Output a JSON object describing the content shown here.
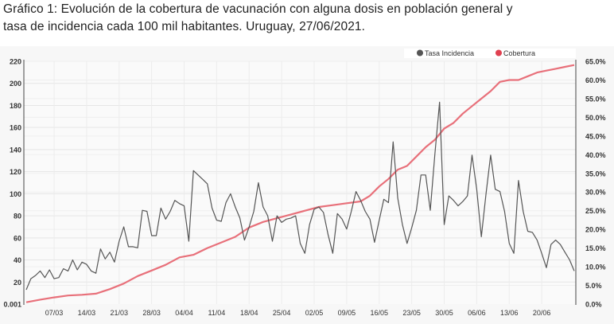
{
  "title": {
    "line1": "Gráfico 1: Evolución de la cobertura de vacunación con alguna dosis en población general y",
    "line2": "tasa de incidencia cada 100 mil habitantes. Uruguay, 27/06/2021."
  },
  "colors": {
    "incidence": "#555555",
    "coverage": "#e8707a",
    "coverage_legend": "#e04050",
    "grid": "#e6e6e6"
  },
  "chart_data": {
    "type": "line",
    "title": "Gráfico 1: Evolución de la cobertura de vacunación con alguna dosis en población general y tasa de incidencia cada 100 mil habitantes. Uruguay, 27/06/2021.",
    "legend": [
      "Tasa Incidencia",
      "Cobertura"
    ],
    "legend_position": "top-right",
    "x_ticks": [
      "07/03",
      "14/03",
      "21/03",
      "28/03",
      "04/04",
      "11/04",
      "18/04",
      "25/04",
      "02/05",
      "09/05",
      "16/05",
      "23/05",
      "30/05",
      "06/06",
      "13/06",
      "20/06"
    ],
    "y_left_ticks": [
      "0.001",
      "20",
      "40",
      "60",
      "80",
      "100",
      "120",
      "140",
      "160",
      "180",
      "200",
      "220"
    ],
    "y_left_values": [
      0.001,
      20,
      40,
      60,
      80,
      100,
      120,
      140,
      160,
      180,
      200,
      220
    ],
    "y_right_ticks": [
      "0.0%",
      "5.0%",
      "10.0%",
      "15.0%",
      "20.0%",
      "25.0%",
      "30.0%",
      "35.0%",
      "40.0%",
      "45.0%",
      "50.0%",
      "55.0%",
      "60.0%",
      "65.0%"
    ],
    "y_right_values": [
      0,
      5,
      10,
      15,
      20,
      25,
      30,
      35,
      40,
      45,
      50,
      55,
      60,
      65
    ],
    "ylim_left": [
      0,
      220
    ],
    "ylim_right": [
      0,
      65
    ],
    "x_start_day": 0,
    "x_end_day": 118,
    "x_tick_days": [
      6,
      13,
      20,
      27,
      34,
      41,
      48,
      55,
      62,
      69,
      76,
      83,
      90,
      97,
      104,
      111
    ],
    "grid": true,
    "series": [
      {
        "name": "Tasa Incidencia",
        "axis": "left",
        "days": [
          0,
          1,
          2,
          3,
          4,
          5,
          6,
          7,
          8,
          9,
          10,
          11,
          12,
          13,
          14,
          15,
          16,
          17,
          18,
          19,
          20,
          21,
          22,
          23,
          24,
          25,
          26,
          27,
          28,
          29,
          30,
          31,
          32,
          33,
          34,
          35,
          36,
          37,
          38,
          39,
          40,
          41,
          42,
          43,
          44,
          45,
          46,
          47,
          48,
          49,
          50,
          51,
          52,
          53,
          54,
          55,
          56,
          57,
          58,
          59,
          60,
          61,
          62,
          63,
          64,
          65,
          66,
          67,
          68,
          69,
          70,
          71,
          72,
          73,
          74,
          75,
          76,
          77,
          78,
          79,
          80,
          81,
          82,
          83,
          84,
          85,
          86,
          87,
          88,
          89,
          90,
          91,
          92,
          93,
          94,
          95,
          96,
          97,
          98,
          99,
          100,
          101,
          102,
          103,
          104,
          105,
          106,
          107,
          108,
          109,
          110,
          111,
          112,
          113,
          114,
          115,
          116,
          117,
          118
        ],
        "values": [
          13,
          23,
          26,
          30,
          24,
          31,
          23,
          24,
          32,
          30,
          40,
          31,
          38,
          36,
          30,
          28,
          50,
          41,
          47,
          38,
          57,
          70,
          52,
          52,
          51,
          85,
          84,
          62,
          62,
          87,
          77,
          84,
          94,
          91,
          89,
          57,
          121,
          117,
          113,
          109,
          87,
          76,
          75,
          92,
          100,
          88,
          78,
          58,
          70,
          84,
          110,
          88,
          80,
          57,
          80,
          74,
          77,
          78,
          80,
          55,
          46,
          72,
          86,
          88,
          83,
          63,
          46,
          82,
          77,
          68,
          84,
          102,
          94,
          84,
          77,
          56,
          76,
          95,
          92,
          147,
          96,
          72,
          55,
          69,
          85,
          117,
          117,
          85,
          136,
          183,
          72,
          98,
          94,
          89,
          93,
          98,
          135,
          104,
          61,
          100,
          135,
          104,
          102,
          84,
          55,
          46,
          112,
          84,
          66,
          65,
          58,
          46,
          33,
          54,
          58,
          54,
          47,
          40,
          30
        ]
      },
      {
        "name": "Cobertura",
        "axis": "right",
        "days": [
          0,
          3,
          6,
          9,
          12,
          15,
          18,
          21,
          24,
          27,
          30,
          33,
          36,
          39,
          42,
          45,
          48,
          51,
          54,
          57,
          60,
          63,
          66,
          69,
          72,
          74,
          76,
          78,
          80,
          82,
          84,
          86,
          88,
          90,
          92,
          94,
          96,
          98,
          100,
          102,
          104,
          106,
          108,
          110,
          112,
          114,
          116,
          118
        ],
        "values": [
          0.5,
          1.2,
          1.8,
          2.3,
          2.5,
          2.8,
          4.0,
          5.5,
          7.5,
          9.0,
          10.5,
          12.5,
          13.2,
          15.0,
          16.5,
          18.0,
          20.5,
          22.0,
          23.0,
          24.0,
          25.0,
          26.0,
          26.5,
          27.0,
          27.5,
          29.0,
          31.5,
          33.5,
          36.0,
          37.0,
          39.5,
          42.0,
          44.0,
          47.0,
          48.5,
          51.0,
          53.0,
          55.0,
          57.0,
          59.5,
          60.0,
          60.0,
          61.0,
          62.0,
          62.5,
          63.0,
          63.5,
          64.0
        ]
      }
    ]
  }
}
